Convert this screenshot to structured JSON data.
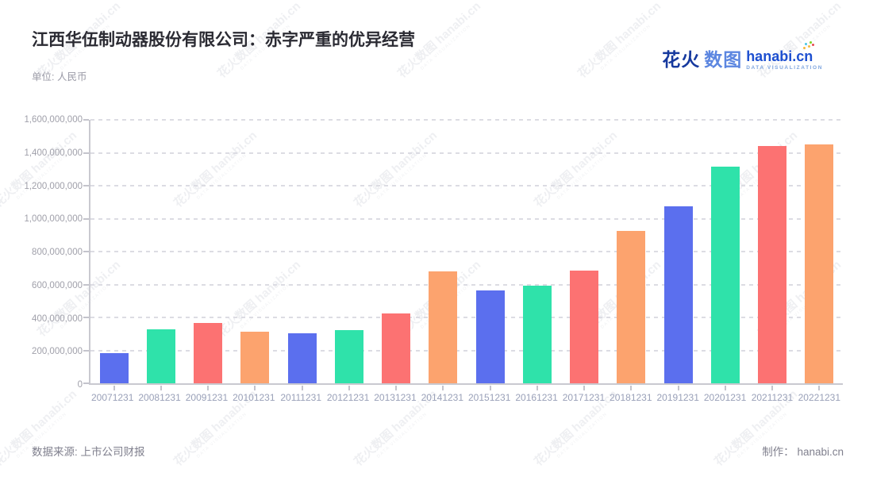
{
  "header": {
    "title": "江西华伍制动器股份有限公司：赤字严重的优异经营",
    "unit_label": "单位: 人民币"
  },
  "logo": {
    "brand_cn_bold": "花火",
    "brand_cn_light": "数图",
    "domain": "hanabi.cn",
    "tagline": "DATA VISUALIZATION"
  },
  "watermark": {
    "line1": "花火数图 hanabi.cn",
    "line2": "DATA VISUALIZATION"
  },
  "footer": {
    "source": "数据来源: 上市公司财报",
    "credit": "制作： hanabi.cn"
  },
  "chart_data": {
    "type": "bar",
    "title": "江西华伍制动器股份有限公司：赤字严重的优异经营",
    "unit": "人民币",
    "categories": [
      "20071231",
      "20081231",
      "20091231",
      "20101231",
      "20111231",
      "20121231",
      "20131231",
      "20141231",
      "20151231",
      "20161231",
      "20171231",
      "20181231",
      "20191231",
      "20201231",
      "20211231",
      "20221231"
    ],
    "values": [
      183000000,
      330000000,
      365000000,
      315000000,
      303000000,
      321000000,
      422000000,
      680000000,
      565000000,
      592000000,
      683000000,
      926000000,
      1073000000,
      1317000000,
      1442000000,
      1450000000
    ],
    "bar_color_cycle": [
      "#5B6FEE",
      "#2FE2AA",
      "#FC7272",
      "#FCA36E"
    ],
    "xlabel": "",
    "ylabel": "人民币",
    "ylim": [
      0,
      1600000000
    ],
    "y_tick_step": 200000000,
    "grid": "horizontal-dashed",
    "legend": "none"
  }
}
